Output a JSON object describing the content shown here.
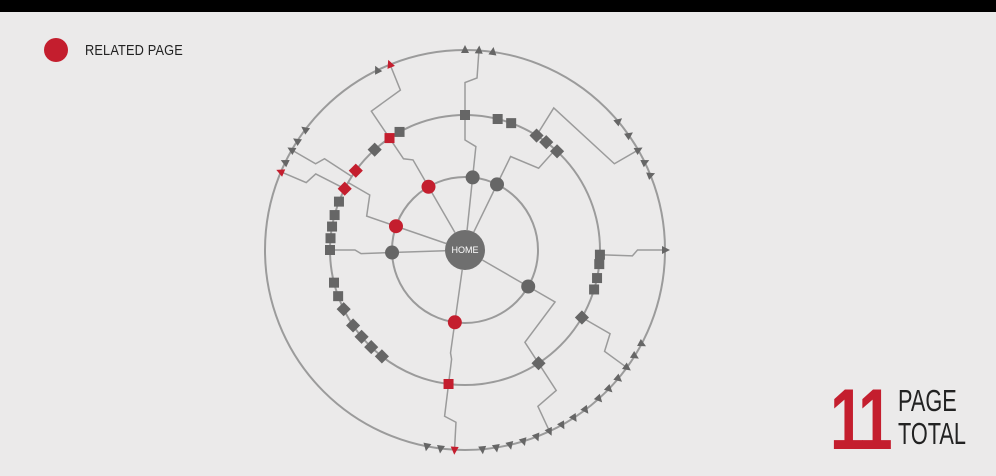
{
  "legend": {
    "label": "RELATED PAGE",
    "color": "#c41e2e"
  },
  "center": {
    "label": "HOME"
  },
  "total": {
    "number": "11",
    "line1": "PAGE",
    "line2": "TOTAL"
  },
  "colors": {
    "related": "#c41e2e",
    "node": "#666666",
    "edge": "#9b9b9b",
    "center": "#6f6f6f"
  },
  "level1": [
    {
      "angle": -120,
      "related": true
    },
    {
      "angle": -84,
      "related": false
    },
    {
      "angle": -64,
      "related": false
    },
    {
      "angle": -161,
      "related": true
    },
    {
      "angle": 178,
      "related": false
    },
    {
      "angle": 30,
      "related": false
    },
    {
      "angle": 98,
      "related": true
    }
  ],
  "level2": [
    {
      "angle": -124,
      "related": true,
      "shape": "square"
    },
    {
      "angle": -119,
      "related": false,
      "shape": "square"
    },
    {
      "angle": -132,
      "related": false,
      "shape": "diamond"
    },
    {
      "angle": -144,
      "related": true,
      "shape": "diamond"
    },
    {
      "angle": -153,
      "related": true,
      "shape": "diamond"
    },
    {
      "angle": -90,
      "related": false,
      "shape": "square"
    },
    {
      "angle": -76,
      "related": false,
      "shape": "square"
    },
    {
      "angle": -70,
      "related": false,
      "shape": "square"
    },
    {
      "angle": -58,
      "related": false,
      "shape": "diamond"
    },
    {
      "angle": -53,
      "related": false,
      "shape": "diamond"
    },
    {
      "angle": -47,
      "related": false,
      "shape": "diamond"
    },
    {
      "angle": -159,
      "related": false,
      "shape": "square"
    },
    {
      "angle": -165,
      "related": false,
      "shape": "square"
    },
    {
      "angle": -170,
      "related": false,
      "shape": "square"
    },
    {
      "angle": -175,
      "related": false,
      "shape": "square"
    },
    {
      "angle": 180,
      "related": false,
      "shape": "square"
    },
    {
      "angle": 166,
      "related": false,
      "shape": "square"
    },
    {
      "angle": 160,
      "related": false,
      "shape": "square"
    },
    {
      "angle": 154,
      "related": false,
      "shape": "diamond"
    },
    {
      "angle": 146,
      "related": false,
      "shape": "diamond"
    },
    {
      "angle": 140,
      "related": false,
      "shape": "diamond"
    },
    {
      "angle": 134,
      "related": false,
      "shape": "diamond"
    },
    {
      "angle": 128,
      "related": false,
      "shape": "diamond"
    },
    {
      "angle": 2,
      "related": false,
      "shape": "square"
    },
    {
      "angle": 6,
      "related": false,
      "shape": "square"
    },
    {
      "angle": 12,
      "related": false,
      "shape": "square"
    },
    {
      "angle": 17,
      "related": false,
      "shape": "square"
    },
    {
      "angle": 30,
      "related": false,
      "shape": "diamond"
    },
    {
      "angle": 57,
      "related": false,
      "shape": "diamond"
    },
    {
      "angle": 97,
      "related": true,
      "shape": "square"
    }
  ],
  "level3": [
    {
      "angle": -116,
      "related": false
    },
    {
      "angle": -112,
      "related": true
    },
    {
      "angle": -90,
      "related": false
    },
    {
      "angle": -86,
      "related": false
    },
    {
      "angle": -82,
      "related": false
    },
    {
      "angle": -150,
      "related": false
    },
    {
      "angle": -147,
      "related": false
    },
    {
      "angle": -143,
      "related": false
    },
    {
      "angle": -157,
      "related": true
    },
    {
      "angle": -154,
      "related": false
    },
    {
      "angle": -40,
      "related": false
    },
    {
      "angle": -35,
      "related": false
    },
    {
      "angle": -30,
      "related": false
    },
    {
      "angle": -26,
      "related": false
    },
    {
      "angle": -22,
      "related": false
    },
    {
      "angle": 0,
      "related": false
    },
    {
      "angle": 28,
      "related": false
    },
    {
      "angle": 32,
      "related": false
    },
    {
      "angle": 36,
      "related": false
    },
    {
      "angle": 40,
      "related": false
    },
    {
      "angle": 44,
      "related": false
    },
    {
      "angle": 48,
      "related": false
    },
    {
      "angle": 53,
      "related": false
    },
    {
      "angle": 57,
      "related": false
    },
    {
      "angle": 61,
      "related": false
    },
    {
      "angle": 65,
      "related": false
    },
    {
      "angle": 69,
      "related": false
    },
    {
      "angle": 73,
      "related": false
    },
    {
      "angle": 77,
      "related": false
    },
    {
      "angle": 81,
      "related": false
    },
    {
      "angle": 85,
      "related": false
    },
    {
      "angle": 93,
      "related": true
    },
    {
      "angle": 97,
      "related": false
    },
    {
      "angle": 101,
      "related": false
    }
  ]
}
